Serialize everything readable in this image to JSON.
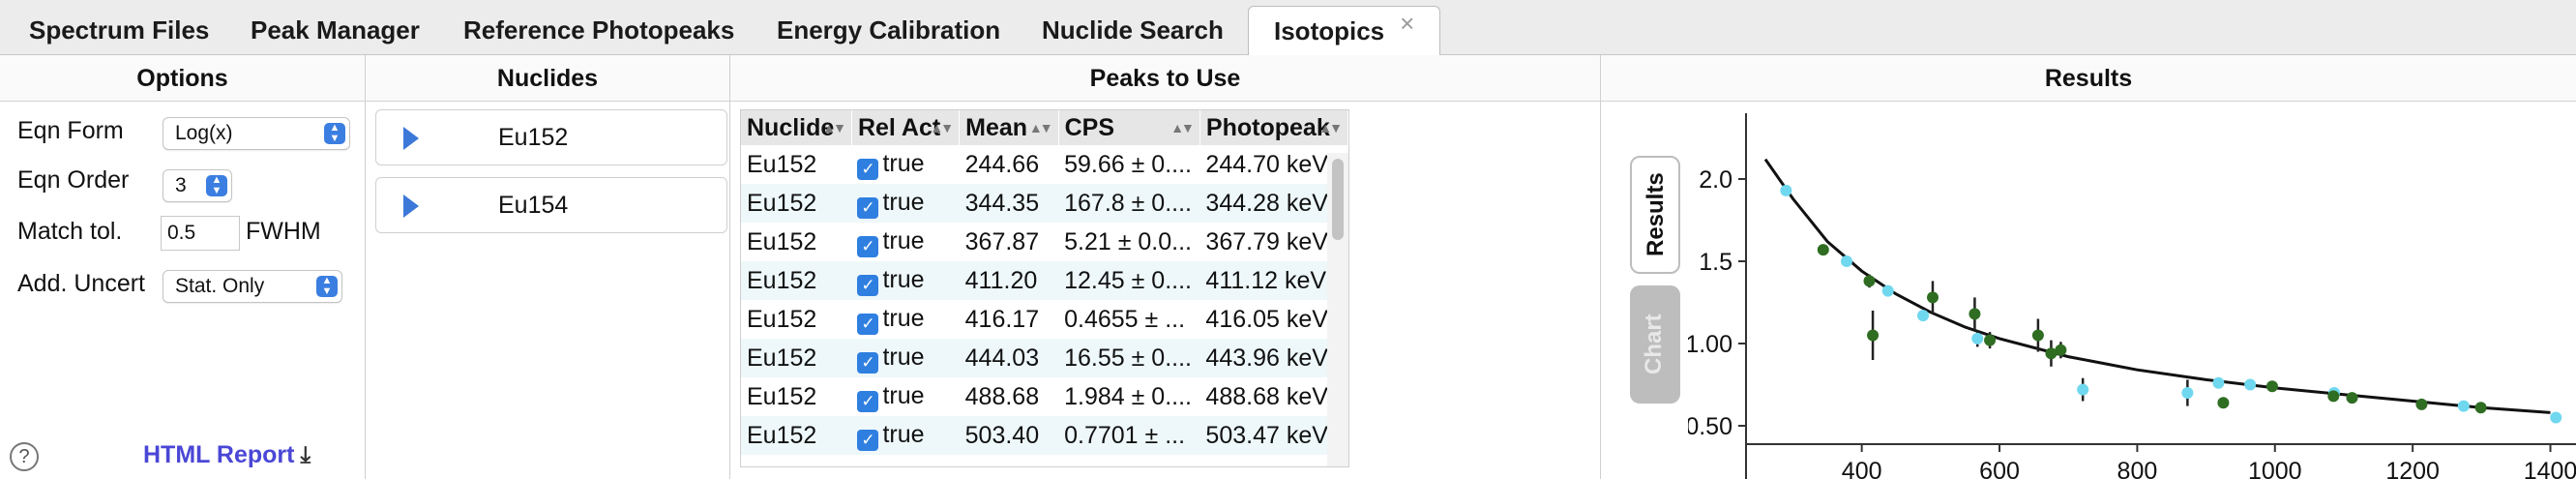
{
  "tabs": [
    {
      "label": "Spectrum Files"
    },
    {
      "label": "Peak Manager"
    },
    {
      "label": "Reference Photopeaks"
    },
    {
      "label": "Energy Calibration"
    },
    {
      "label": "Nuclide Search"
    },
    {
      "label": "Isotopics",
      "close": "×"
    }
  ],
  "options": {
    "header": "Options",
    "eqn_form_label": "Eqn Form",
    "eqn_form_value": "Log(x)",
    "eqn_order_label": "Eqn Order",
    "eqn_order_value": "3",
    "match_tol_label": "Match tol.",
    "match_tol_value": "0.5",
    "match_tol_unit": "FWHM",
    "add_uncert_label": "Add. Uncert",
    "add_uncert_value": "Stat. Only",
    "help": "?",
    "report_label": "HTML Report"
  },
  "nuclides": {
    "header": "Nuclides",
    "items": [
      {
        "label": "Eu152"
      },
      {
        "label": "Eu154"
      }
    ]
  },
  "peaks": {
    "header": "Peaks to Use",
    "columns": [
      "Nuclide",
      "Rel Act",
      "Mean",
      "CPS",
      "Photopeak"
    ],
    "rows": [
      {
        "nuclide": "Eu152",
        "rel": "true",
        "mean": "244.66",
        "cps": "59.66 ± 0....",
        "photopeak": "244.70 keV"
      },
      {
        "nuclide": "Eu152",
        "rel": "true",
        "mean": "344.35",
        "cps": "167.8 ± 0....",
        "photopeak": "344.28 keV"
      },
      {
        "nuclide": "Eu152",
        "rel": "true",
        "mean": "367.87",
        "cps": "5.21 ± 0.0...",
        "photopeak": "367.79 keV"
      },
      {
        "nuclide": "Eu152",
        "rel": "true",
        "mean": "411.20",
        "cps": "12.45 ± 0....",
        "photopeak": "411.12 keV"
      },
      {
        "nuclide": "Eu152",
        "rel": "true",
        "mean": "416.17",
        "cps": "0.4655 ± ...",
        "photopeak": "416.05 keV"
      },
      {
        "nuclide": "Eu152",
        "rel": "true",
        "mean": "444.03",
        "cps": "16.55 ± 0....",
        "photopeak": "443.96 keV"
      },
      {
        "nuclide": "Eu152",
        "rel": "true",
        "mean": "488.68",
        "cps": "1.984 ± 0....",
        "photopeak": "488.68 keV"
      },
      {
        "nuclide": "Eu152",
        "rel": "true",
        "mean": "503.40",
        "cps": "0.7701 ± ...",
        "photopeak": "503.47 keV"
      }
    ]
  },
  "results": {
    "header": "Results",
    "tab_results": "Results",
    "tab_chart": "Chart"
  },
  "chart_data": {
    "type": "scatter",
    "xlim": [
      260,
      1440
    ],
    "ylim": [
      0.4,
      2.4
    ],
    "xticks": [
      "400",
      "600",
      "800",
      "1000",
      "1200",
      "1400"
    ],
    "yticks": [
      "0.50",
      "1.00",
      "1.5",
      "2.0"
    ],
    "fit_curve": {
      "x": [
        260,
        300,
        350,
        400,
        450,
        500,
        550,
        600,
        700,
        800,
        900,
        1000,
        1100,
        1200,
        1300,
        1400
      ],
      "y": [
        2.12,
        1.88,
        1.62,
        1.44,
        1.3,
        1.19,
        1.1,
        1.03,
        0.92,
        0.84,
        0.78,
        0.73,
        0.69,
        0.65,
        0.61,
        0.58
      ]
    },
    "series": [
      {
        "color": "#6fd8ef",
        "x": [
          290,
          378,
          438,
          489,
          568,
          721,
          873,
          918,
          964,
          1086,
          1274,
          1408
        ],
        "y": [
          1.93,
          1.5,
          1.32,
          1.17,
          1.03,
          0.72,
          0.7,
          0.76,
          0.75,
          0.7,
          0.62,
          0.55
        ],
        "err": [
          0.03,
          0.03,
          0.03,
          0.03,
          0.05,
          0.07,
          0.08,
          0.03,
          0.03,
          0.03,
          0.03,
          0.03
        ]
      },
      {
        "color": "#2f6d22",
        "x": [
          344,
          411,
          416,
          503,
          564,
          586,
          656,
          675,
          689,
          925,
          996,
          1085,
          1112,
          1213,
          1299
        ],
        "y": [
          1.57,
          1.38,
          1.05,
          1.28,
          1.18,
          1.02,
          1.05,
          0.94,
          0.96,
          0.64,
          0.74,
          0.68,
          0.67,
          0.63,
          0.61
        ],
        "err": [
          0.03,
          0.04,
          0.15,
          0.1,
          0.1,
          0.05,
          0.1,
          0.08,
          0.05,
          0.03,
          0.03,
          0.03,
          0.03,
          0.03,
          0.03
        ]
      }
    ]
  }
}
